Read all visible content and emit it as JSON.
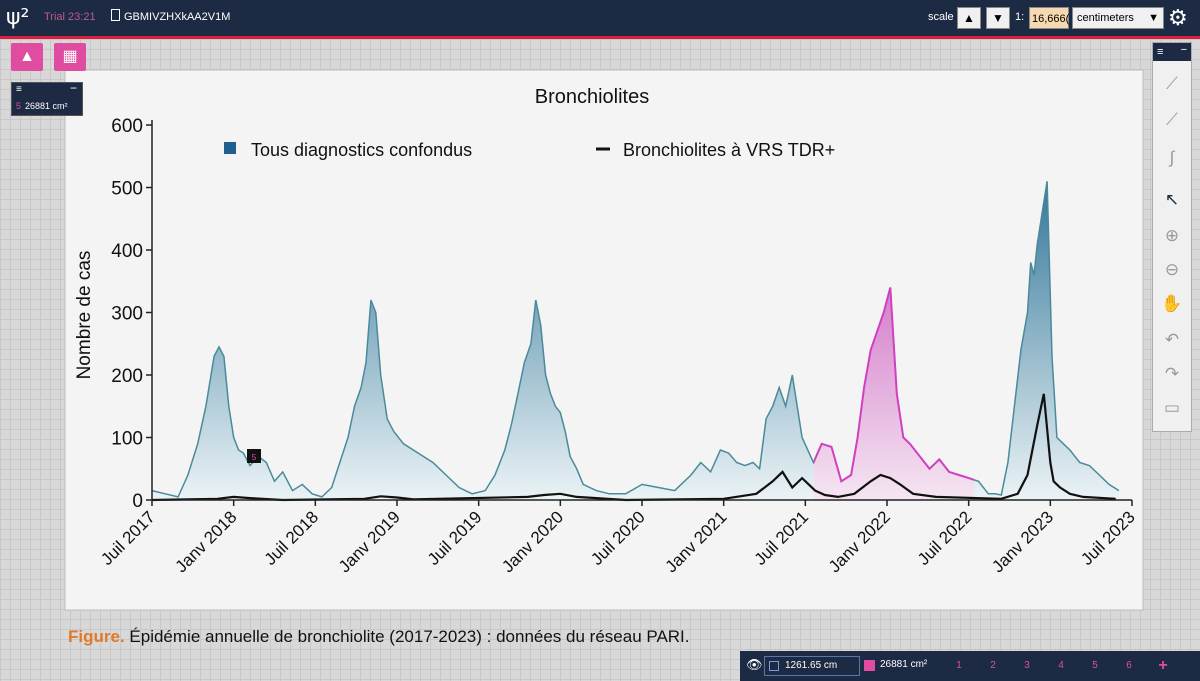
{
  "topbar": {
    "logo": "ψ²",
    "trial": "Trial 23:21",
    "doc_id": "GBMIVZHXkAA2V1M",
    "scale_label": "scale",
    "scale_up_icon": "triangle-up-icon",
    "scale_down_icon": "triangle-down-icon",
    "ratio_prefix": "1:",
    "ratio_value": "16,666(",
    "unit": "centimeters",
    "settings_icon": "gear-icon"
  },
  "left_tools": {
    "image_icon": "image-icon",
    "grid_icon": "grid-icon"
  },
  "measure_panel": {
    "index": "5",
    "value": "26881 cm²"
  },
  "right_toolbar": {
    "tools": [
      "ruler-icon",
      "magic-wand-icon",
      "path-icon",
      "cursor-icon",
      "zoom-in-icon",
      "zoom-out-icon",
      "hand-icon",
      "undo-icon",
      "redo-icon",
      "comment-icon"
    ],
    "active": "cursor-icon"
  },
  "chart_data": {
    "type": "area",
    "title": "Bronchiolites",
    "ylabel": "Nombre de cas",
    "ylim": [
      0,
      600
    ],
    "yticks": [
      "0",
      "100",
      "200",
      "300",
      "400",
      "500",
      "600"
    ],
    "xlim": [
      2017.5,
      2023.5
    ],
    "xticks": [
      "Juil 2017",
      "Janv 2018",
      "Juil 2018",
      "Janv 2019",
      "Juil 2019",
      "Janv 2020",
      "Juil 2020",
      "Janv 2021",
      "Juil 2021",
      "Janv 2022",
      "Juil 2022",
      "Janv 2023",
      "Juil 2023"
    ],
    "legend": [
      {
        "label": "Tous diagnostics confondus",
        "color": "#1f5f8f"
      },
      {
        "label": "Bronchiolites à VRS TDR+",
        "color": "#111111"
      }
    ],
    "legend_position": "top",
    "series": [
      {
        "name": "Tous diagnostics confondus",
        "color": "#2a7aa0",
        "x": [
          2017.5,
          2017.58,
          2017.66,
          2017.72,
          2017.78,
          2017.83,
          2017.88,
          2017.91,
          2017.94,
          2017.97,
          2018.0,
          2018.03,
          2018.06,
          2018.1,
          2018.15,
          2018.2,
          2018.25,
          2018.3,
          2018.36,
          2018.42,
          2018.48,
          2018.54,
          2018.6,
          2018.65,
          2018.7,
          2018.74,
          2018.78,
          2018.81,
          2018.84,
          2018.87,
          2018.9,
          2018.94,
          2018.98,
          2019.04,
          2019.1,
          2019.16,
          2019.22,
          2019.3,
          2019.38,
          2019.46,
          2019.54,
          2019.6,
          2019.66,
          2019.7,
          2019.74,
          2019.78,
          2019.82,
          2019.85,
          2019.88,
          2019.91,
          2019.94,
          2019.97,
          2020.0,
          2020.03,
          2020.06,
          2020.1,
          2020.14,
          2020.18,
          2020.22,
          2020.3,
          2020.4,
          2020.5,
          2020.6,
          2020.7,
          2020.8,
          2020.86,
          2020.92,
          2020.98,
          2021.03,
          2021.08,
          2021.13,
          2021.18,
          2021.22,
          2021.26,
          2021.3,
          2021.34,
          2021.38,
          2021.42,
          2021.48,
          2021.55,
          2021.6,
          2021.66,
          2021.72,
          2021.78,
          2021.82,
          2021.86,
          2021.9,
          2021.94,
          2021.98,
          2022.02,
          2022.06,
          2022.1,
          2022.14,
          2022.2,
          2022.26,
          2022.32,
          2022.38,
          2022.44,
          2022.5,
          2022.56,
          2022.62,
          2022.66,
          2022.7,
          2022.74,
          2022.78,
          2022.82,
          2022.86,
          2022.88,
          2022.9,
          2022.92,
          2022.95,
          2022.98,
          2023.01,
          2023.04,
          2023.08,
          2023.12,
          2023.18,
          2023.24,
          2023.3,
          2023.36,
          2023.42
        ],
        "values": [
          15,
          10,
          5,
          40,
          90,
          150,
          230,
          245,
          230,
          150,
          100,
          80,
          75,
          55,
          70,
          60,
          30,
          45,
          15,
          25,
          10,
          5,
          20,
          60,
          100,
          150,
          180,
          220,
          320,
          300,
          200,
          130,
          110,
          90,
          80,
          70,
          60,
          40,
          20,
          10,
          15,
          40,
          80,
          120,
          170,
          220,
          250,
          320,
          280,
          200,
          170,
          150,
          140,
          110,
          70,
          50,
          25,
          20,
          15,
          10,
          10,
          25,
          20,
          15,
          40,
          60,
          45,
          80,
          75,
          60,
          55,
          60,
          50,
          130,
          150,
          180,
          150,
          200,
          100,
          60,
          90,
          85,
          30,
          40,
          100,
          180,
          240,
          270,
          300,
          340,
          170,
          100,
          90,
          70,
          50,
          65,
          45,
          40,
          35,
          30,
          10,
          10,
          8,
          60,
          150,
          240,
          300,
          380,
          360,
          410,
          460,
          510,
          230,
          100,
          90,
          80,
          60,
          55,
          40,
          25,
          15
        ]
      },
      {
        "name": "Bronchiolites à VRS TDR+",
        "color": "#111111",
        "x": [
          2017.5,
          2017.9,
          2018.0,
          2018.1,
          2018.3,
          2018.8,
          2018.9,
          2019.0,
          2019.1,
          2019.8,
          2019.9,
          2020.0,
          2020.1,
          2020.4,
          2021.0,
          2021.2,
          2021.3,
          2021.36,
          2021.42,
          2021.48,
          2021.56,
          2021.62,
          2021.7,
          2021.8,
          2021.9,
          2021.96,
          2022.02,
          2022.08,
          2022.16,
          2022.3,
          2022.7,
          2022.8,
          2022.86,
          2022.92,
          2022.96,
          2023.0,
          2023.02,
          2023.06,
          2023.12,
          2023.2,
          2023.4
        ],
        "values": [
          0,
          2,
          5,
          3,
          0,
          2,
          6,
          4,
          1,
          5,
          8,
          10,
          5,
          0,
          2,
          10,
          30,
          45,
          20,
          35,
          15,
          8,
          5,
          10,
          30,
          40,
          35,
          25,
          10,
          5,
          2,
          10,
          40,
          120,
          170,
          60,
          30,
          20,
          10,
          5,
          2
        ]
      }
    ]
  },
  "caption": {
    "lead": "Figure.",
    "text": " Épidémie annuelle de bronchiolite (2017-2023) : données du réseau PARI."
  },
  "bottom_bar": {
    "visibility_icon": "eye-icon",
    "length": "1261.65 cm",
    "area": "26881 cm²",
    "pages": [
      "1",
      "2",
      "3",
      "4",
      "5",
      "6"
    ],
    "add_icon": "+"
  }
}
